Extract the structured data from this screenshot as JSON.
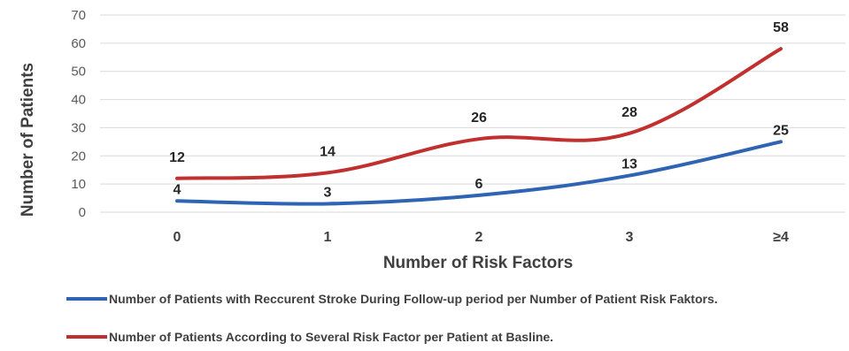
{
  "chart_data": {
    "type": "line",
    "categories": [
      "0",
      "1",
      "2",
      "3",
      "≥4"
    ],
    "ylim": [
      0,
      70
    ],
    "yticks": [
      0,
      10,
      20,
      30,
      40,
      50,
      60,
      70
    ],
    "xlabel": "Number of Risk Factors",
    "ylabel": "Number of  Patients",
    "grid": true,
    "legend_position": "bottom",
    "series": [
      {
        "name": "Number of Patients  with Reccurent Stroke During Follow-up period per Number of Patient Risk Faktors.",
        "values": [
          4,
          3,
          6,
          13,
          25
        ],
        "color": "#2e64b3"
      },
      {
        "name": "Number of Patients  According to Several Risk Factor per Patient at Basline.",
        "values": [
          12,
          14,
          26,
          28,
          58
        ],
        "color": "#c0302f"
      }
    ]
  }
}
